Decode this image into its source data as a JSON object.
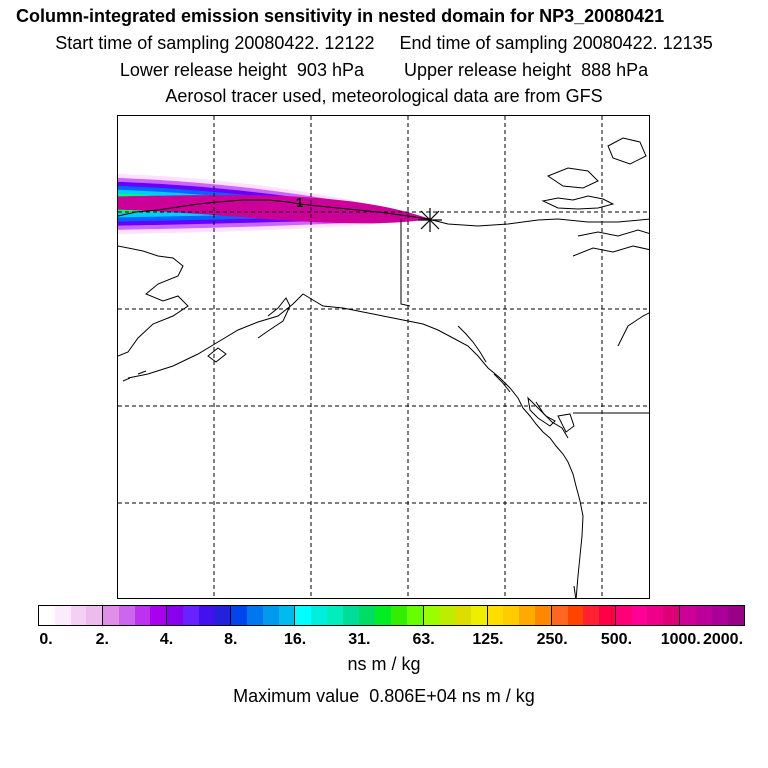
{
  "titles": {
    "main": "Column-integrated emission sensitivity in nested domain for NP3_20080421",
    "line2": "Start time of sampling 20080422. 12122     End time of sampling 20080422. 12135",
    "line3": "Lower release height  903 hPa        Upper release height  888 hPa",
    "line4": "Aerosol tracer used, meteorological data are from GFS"
  },
  "map": {
    "plume_label": "1",
    "release_marker": "star-marker",
    "grid": "dashed",
    "plume_colors": [
      "#ffe0ff",
      "#cc66ff",
      "#6600ff",
      "#0066ff",
      "#00ccff",
      "#00ff66",
      "#ccff00",
      "#ffaa00",
      "#ff0066",
      "#cc0099"
    ]
  },
  "colorbar": {
    "ticks": [
      "0.",
      "2.",
      "4.",
      "8.",
      "16.",
      "31.",
      "63.",
      "125.",
      "250.",
      "500.",
      "1000.",
      "2000."
    ],
    "colors": [
      "#ffffff",
      "#fcebfc",
      "#f5d0f5",
      "#eebbee",
      "#e08fe8",
      "#cc66ee",
      "#bb33ee",
      "#aa00ee",
      "#8800ee",
      "#6622ff",
      "#4411ee",
      "#2222dd",
      "#0044ee",
      "#0077ee",
      "#0099ee",
      "#00bbee",
      "#00ffff",
      "#00eedd",
      "#00eebb",
      "#00dd99",
      "#00dd66",
      "#00ee22",
      "#33ee00",
      "#66ff00",
      "#99ff00",
      "#bbee00",
      "#dddd00",
      "#eeee00",
      "#ffdd00",
      "#ffcc00",
      "#ffaa00",
      "#ff8800",
      "#ff6622",
      "#ff4400",
      "#ff2233",
      "#ff0044",
      "#ff0077",
      "#ff0099",
      "#ee0088",
      "#dd0077",
      "#cc0099",
      "#bb0099",
      "#aa0099",
      "#990088",
      "#880077",
      "#770066",
      "#660055",
      "#550044"
    ],
    "units": "ns m / kg",
    "max_value": "Maximum value  0.806E+04 ns m / kg"
  }
}
